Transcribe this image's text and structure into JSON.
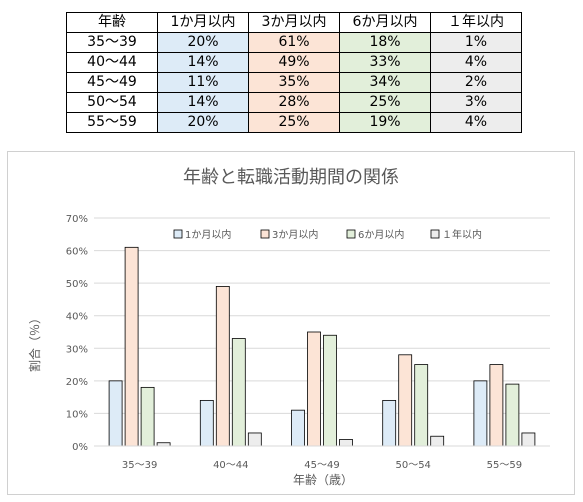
{
  "table": {
    "headers": [
      "年齢",
      "1か月以内",
      "3か月以内",
      "6か月以内",
      "１年以内"
    ],
    "rows": [
      [
        "35～39",
        "20%",
        "61%",
        "18%",
        "1%"
      ],
      [
        "40～44",
        "14%",
        "49%",
        "33%",
        "4%"
      ],
      [
        "45～49",
        "11%",
        "35%",
        "34%",
        "2%"
      ],
      [
        "50～54",
        "14%",
        "28%",
        "25%",
        "3%"
      ],
      [
        "55～59",
        "20%",
        "25%",
        "19%",
        "4%"
      ]
    ],
    "column_colors": [
      "#ffffff",
      "#ddebf7",
      "#fce4d6",
      "#e2efda",
      "#ededed"
    ]
  },
  "chart_data": {
    "type": "bar",
    "title": "年齢と転職活動期間の関係",
    "xlabel": "年齢（歳）",
    "ylabel": "割合（％）",
    "categories": [
      "35～39",
      "40～44",
      "45～49",
      "50～54",
      "55～59"
    ],
    "ylim": [
      0,
      70
    ],
    "yticks": [
      "0%",
      "10%",
      "20%",
      "30%",
      "40%",
      "50%",
      "60%",
      "70%"
    ],
    "grid": true,
    "legend_position": "top",
    "series": [
      {
        "name": "1か月以内",
        "values": [
          20,
          14,
          11,
          14,
          20
        ],
        "color": "#ddebf7"
      },
      {
        "name": "3か月以内",
        "values": [
          61,
          49,
          35,
          28,
          25
        ],
        "color": "#fce4d6"
      },
      {
        "name": "6か月以内",
        "values": [
          18,
          33,
          34,
          25,
          19
        ],
        "color": "#e2efda"
      },
      {
        "name": "１年以内",
        "values": [
          1,
          4,
          2,
          3,
          4
        ],
        "color": "#ededed"
      }
    ]
  }
}
